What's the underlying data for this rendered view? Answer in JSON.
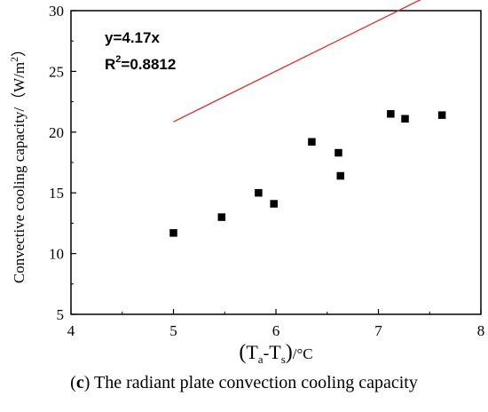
{
  "chart_data": {
    "type": "scatter",
    "x": [
      5.0,
      5.47,
      5.83,
      5.98,
      6.35,
      6.61,
      6.63,
      7.12,
      7.26,
      7.62
    ],
    "y": [
      11.7,
      13.0,
      15.0,
      14.1,
      19.2,
      18.3,
      16.4,
      21.5,
      21.1,
      21.4
    ],
    "fit": {
      "slope": 4.17,
      "intercept": 0,
      "x_range": [
        5.0,
        7.62
      ],
      "color": "#e8281e"
    },
    "equation": "y=4.17x",
    "r2": {
      "prefix": "R",
      "sup": "2",
      "value": "=0.8812"
    },
    "xlabel": {
      "open": "(",
      "t1": "T",
      "sub1": "a",
      "dash": "-",
      "t2": "T",
      "sub2": "s",
      "close": ")",
      "unit": "/°C"
    },
    "ylabel": "Convective cooling capacity/（W/m",
    "ylabel_sup": "2",
    "ylabel_close": "）",
    "xlim": [
      4,
      8
    ],
    "ylim": [
      5,
      30
    ],
    "xticks": [
      "4",
      "5",
      "6",
      "7",
      "8"
    ],
    "yticks": [
      "5",
      "10",
      "15",
      "20",
      "25",
      "30"
    ],
    "grid": false,
    "marker_color": "#000000"
  },
  "caption": {
    "letter": "c",
    "text": " The radiant plate convection cooling capacity"
  }
}
